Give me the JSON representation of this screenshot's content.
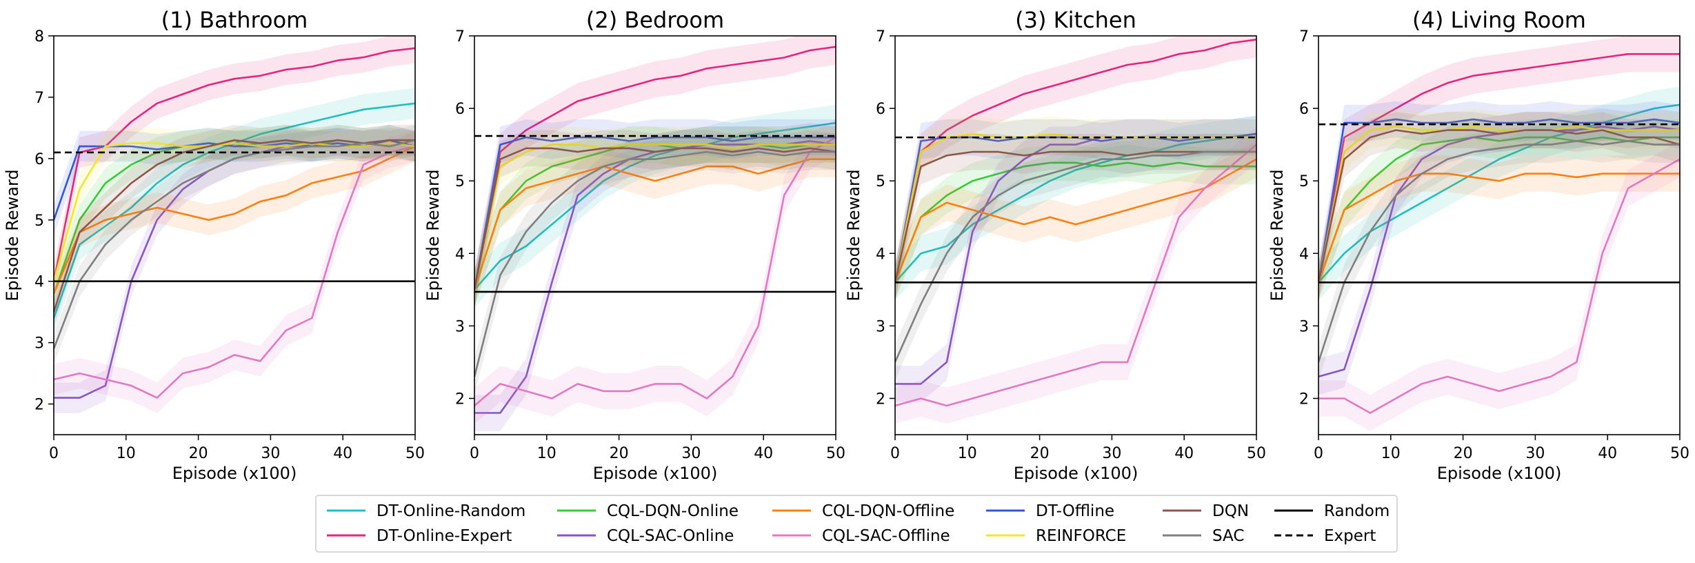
{
  "chart_data": {
    "type": "line",
    "xlabel": "Episode (x100)",
    "ylabel": "Episode Reward",
    "x_ticks": [
      0,
      10,
      20,
      30,
      40,
      50
    ],
    "legend": {
      "position": "bottom-center",
      "entries": [
        {
          "name": "DT-Online-Random",
          "color": "#1fbfbf",
          "style": "solid"
        },
        {
          "name": "DT-Online-Expert",
          "color": "#e6237e",
          "style": "solid"
        },
        {
          "name": "CQL-DQN-Online",
          "color": "#33cc33",
          "style": "solid"
        },
        {
          "name": "CQL-SAC-Online",
          "color": "#8855c8",
          "style": "solid"
        },
        {
          "name": "CQL-DQN-Offline",
          "color": "#ff7f0e",
          "style": "solid"
        },
        {
          "name": "CQL-SAC-Offline",
          "color": "#e377c2",
          "style": "solid"
        },
        {
          "name": "DT-Offline",
          "color": "#3355dd",
          "style": "solid"
        },
        {
          "name": "REINFORCE",
          "color": "#f2e52a",
          "style": "solid"
        },
        {
          "name": "DQN",
          "color": "#8c564b",
          "style": "solid"
        },
        {
          "name": "SAC",
          "color": "#7f7f7f",
          "style": "solid"
        },
        {
          "name": "Random",
          "color": "#000000",
          "style": "solid"
        },
        {
          "name": "Expert",
          "color": "#000000",
          "style": "dashed"
        }
      ]
    },
    "panels": [
      {
        "title": "(1) Bathroom",
        "xlim": [
          0,
          50
        ],
        "ylim": [
          1.5,
          8
        ],
        "y_ticks": [
          2,
          3,
          4,
          5,
          6,
          7,
          8
        ],
        "random": 4.0,
        "expert": 6.1,
        "series": [
          {
            "name": "DT-Online-Random",
            "values": [
              3.4,
              4.6,
              4.9,
              5.2,
              5.6,
              5.9,
              6.1,
              6.25,
              6.4,
              6.5,
              6.6,
              6.7,
              6.8,
              6.85,
              6.9
            ]
          },
          {
            "name": "DT-Online-Expert",
            "values": [
              4.0,
              6.1,
              6.2,
              6.6,
              6.9,
              7.05,
              7.2,
              7.3,
              7.35,
              7.45,
              7.5,
              7.6,
              7.65,
              7.75,
              7.8
            ]
          },
          {
            "name": "CQL-DQN-Online",
            "values": [
              3.8,
              5.0,
              5.6,
              5.9,
              6.1,
              6.2,
              6.25,
              6.2,
              6.25,
              6.3,
              6.2,
              6.3,
              6.25,
              6.3,
              6.2
            ]
          },
          {
            "name": "CQL-SAC-Online",
            "values": [
              2.1,
              2.1,
              2.3,
              4.0,
              5.0,
              5.5,
              5.8,
              6.0,
              6.1,
              6.2,
              6.2,
              6.25,
              6.2,
              6.25,
              6.2
            ]
          },
          {
            "name": "CQL-DQN-Offline",
            "values": [
              3.8,
              4.8,
              5.0,
              5.1,
              5.2,
              5.1,
              5.0,
              5.1,
              5.3,
              5.4,
              5.6,
              5.7,
              5.8,
              6.0,
              6.2
            ]
          },
          {
            "name": "CQL-SAC-Offline",
            "values": [
              2.4,
              2.5,
              2.4,
              2.3,
              2.1,
              2.5,
              2.6,
              2.8,
              2.7,
              3.2,
              3.4,
              4.8,
              5.9,
              6.1,
              6.2
            ]
          },
          {
            "name": "DT-Offline",
            "values": [
              5.0,
              6.2,
              6.2,
              6.2,
              6.15,
              6.2,
              6.25,
              6.2,
              6.2,
              6.25,
              6.2,
              6.25,
              6.2,
              6.3,
              6.2
            ]
          },
          {
            "name": "REINFORCE",
            "values": [
              4.0,
              5.5,
              6.2,
              6.25,
              6.25,
              6.2,
              6.2,
              6.25,
              6.2,
              6.2,
              6.25,
              6.2,
              6.2,
              6.25,
              6.2
            ]
          },
          {
            "name": "DQN",
            "values": [
              3.5,
              4.8,
              5.2,
              5.6,
              5.9,
              6.1,
              6.2,
              6.3,
              6.25,
              6.3,
              6.25,
              6.3,
              6.25,
              6.3,
              6.3
            ]
          },
          {
            "name": "SAC",
            "values": [
              2.9,
              4.0,
              4.6,
              5.0,
              5.3,
              5.6,
              5.8,
              6.0,
              6.1,
              6.15,
              6.2,
              6.2,
              6.25,
              6.2,
              6.3
            ]
          }
        ]
      },
      {
        "title": "(2) Bedroom",
        "xlim": [
          0,
          50
        ],
        "ylim": [
          1.5,
          7
        ],
        "y_ticks": [
          2,
          3,
          4,
          5,
          6,
          7
        ],
        "random": 3.47,
        "expert": 5.62,
        "series": [
          {
            "name": "DT-Online-Random",
            "values": [
              3.5,
              3.9,
              4.1,
              4.4,
              4.7,
              5.0,
              5.2,
              5.35,
              5.45,
              5.5,
              5.6,
              5.65,
              5.7,
              5.75,
              5.8
            ]
          },
          {
            "name": "DT-Online-Expert",
            "values": [
              3.5,
              5.4,
              5.7,
              5.9,
              6.1,
              6.2,
              6.3,
              6.4,
              6.45,
              6.55,
              6.6,
              6.65,
              6.7,
              6.8,
              6.85
            ]
          },
          {
            "name": "CQL-DQN-Online",
            "values": [
              3.5,
              4.6,
              5.0,
              5.2,
              5.3,
              5.4,
              5.5,
              5.5,
              5.45,
              5.5,
              5.5,
              5.5,
              5.45,
              5.5,
              5.5
            ]
          },
          {
            "name": "CQL-SAC-Online",
            "values": [
              1.8,
              1.8,
              2.3,
              3.6,
              4.8,
              5.1,
              5.3,
              5.4,
              5.45,
              5.5,
              5.5,
              5.5,
              5.5,
              5.55,
              5.5
            ]
          },
          {
            "name": "CQL-DQN-Offline",
            "values": [
              3.5,
              4.6,
              4.9,
              5.0,
              5.1,
              5.2,
              5.1,
              5.0,
              5.1,
              5.2,
              5.2,
              5.1,
              5.2,
              5.3,
              5.3
            ]
          },
          {
            "name": "CQL-SAC-Offline",
            "values": [
              1.9,
              2.2,
              2.1,
              2.0,
              2.2,
              2.1,
              2.1,
              2.2,
              2.2,
              2.0,
              2.3,
              3.0,
              4.8,
              5.4,
              5.6
            ]
          },
          {
            "name": "DT-Offline",
            "values": [
              3.5,
              5.5,
              5.6,
              5.55,
              5.6,
              5.6,
              5.55,
              5.6,
              5.6,
              5.6,
              5.55,
              5.6,
              5.6,
              5.6,
              5.6
            ]
          },
          {
            "name": "REINFORCE",
            "values": [
              3.5,
              5.2,
              5.4,
              5.5,
              5.5,
              5.45,
              5.5,
              5.5,
              5.5,
              5.5,
              5.45,
              5.5,
              5.5,
              5.5,
              5.5
            ]
          },
          {
            "name": "DQN",
            "values": [
              3.5,
              5.3,
              5.45,
              5.45,
              5.4,
              5.45,
              5.45,
              5.4,
              5.45,
              5.45,
              5.4,
              5.45,
              5.4,
              5.45,
              5.4
            ]
          },
          {
            "name": "SAC",
            "values": [
              2.3,
              3.7,
              4.3,
              4.7,
              5.0,
              5.2,
              5.3,
              5.3,
              5.35,
              5.4,
              5.35,
              5.4,
              5.35,
              5.4,
              5.4
            ]
          }
        ]
      },
      {
        "title": "(3) Kitchen",
        "xlim": [
          0,
          50
        ],
        "ylim": [
          1.5,
          7
        ],
        "y_ticks": [
          2,
          3,
          4,
          5,
          6,
          7
        ],
        "random": 3.6,
        "expert": 5.6,
        "series": [
          {
            "name": "DT-Online-Random",
            "values": [
              3.6,
              4.0,
              4.1,
              4.4,
              4.6,
              4.8,
              5.0,
              5.15,
              5.25,
              5.35,
              5.4,
              5.5,
              5.55,
              5.6,
              5.65
            ]
          },
          {
            "name": "DT-Online-Expert",
            "values": [
              3.6,
              5.4,
              5.7,
              5.9,
              6.05,
              6.2,
              6.3,
              6.4,
              6.5,
              6.6,
              6.65,
              6.75,
              6.8,
              6.9,
              6.95
            ]
          },
          {
            "name": "CQL-DQN-Online",
            "values": [
              3.6,
              4.5,
              4.8,
              5.0,
              5.1,
              5.2,
              5.25,
              5.25,
              5.2,
              5.25,
              5.2,
              5.25,
              5.2,
              5.2,
              5.2
            ]
          },
          {
            "name": "CQL-SAC-Online",
            "values": [
              2.2,
              2.2,
              2.5,
              4.3,
              5.0,
              5.3,
              5.5,
              5.5,
              5.6,
              5.6,
              5.6,
              5.6,
              5.6,
              5.6,
              5.6
            ]
          },
          {
            "name": "CQL-DQN-Offline",
            "values": [
              3.6,
              4.5,
              4.7,
              4.6,
              4.5,
              4.4,
              4.5,
              4.4,
              4.5,
              4.6,
              4.7,
              4.8,
              4.9,
              5.1,
              5.3
            ]
          },
          {
            "name": "CQL-SAC-Offline",
            "values": [
              1.9,
              2.0,
              1.9,
              2.0,
              2.1,
              2.2,
              2.3,
              2.4,
              2.5,
              2.5,
              3.5,
              4.5,
              4.9,
              5.2,
              5.5
            ]
          },
          {
            "name": "DT-Offline",
            "values": [
              3.6,
              5.55,
              5.6,
              5.6,
              5.55,
              5.6,
              5.6,
              5.6,
              5.55,
              5.6,
              5.6,
              5.55,
              5.6,
              5.6,
              5.65
            ]
          },
          {
            "name": "REINFORCE",
            "values": [
              3.6,
              5.4,
              5.6,
              5.65,
              5.6,
              5.6,
              5.65,
              5.6,
              5.6,
              5.6,
              5.6,
              5.6,
              5.6,
              5.6,
              5.6
            ]
          },
          {
            "name": "DQN",
            "values": [
              3.6,
              5.2,
              5.35,
              5.4,
              5.4,
              5.35,
              5.4,
              5.4,
              5.4,
              5.35,
              5.4,
              5.4,
              5.4,
              5.4,
              5.4
            ]
          },
          {
            "name": "SAC",
            "values": [
              2.5,
              3.3,
              4.0,
              4.5,
              4.8,
              5.0,
              5.1,
              5.2,
              5.3,
              5.3,
              5.35,
              5.35,
              5.4,
              5.4,
              5.4
            ]
          }
        ]
      },
      {
        "title": "(4) Living Room",
        "xlim": [
          0,
          50
        ],
        "ylim": [
          1.5,
          7
        ],
        "y_ticks": [
          2,
          3,
          4,
          5,
          6,
          7
        ],
        "random": 3.6,
        "expert": 5.78,
        "series": [
          {
            "name": "DT-Online-Random",
            "values": [
              3.6,
              4.0,
              4.3,
              4.5,
              4.7,
              4.9,
              5.1,
              5.3,
              5.45,
              5.6,
              5.7,
              5.8,
              5.9,
              6.0,
              6.05
            ]
          },
          {
            "name": "DT-Online-Expert",
            "values": [
              3.6,
              5.6,
              5.8,
              6.0,
              6.2,
              6.35,
              6.45,
              6.5,
              6.55,
              6.6,
              6.65,
              6.7,
              6.75,
              6.75,
              6.75
            ]
          },
          {
            "name": "CQL-DQN-Online",
            "values": [
              3.6,
              4.6,
              5.0,
              5.3,
              5.5,
              5.55,
              5.6,
              5.55,
              5.6,
              5.6,
              5.55,
              5.6,
              5.55,
              5.6,
              5.6
            ]
          },
          {
            "name": "CQL-SAC-Online",
            "values": [
              2.3,
              2.4,
              3.5,
              4.8,
              5.3,
              5.5,
              5.6,
              5.65,
              5.7,
              5.7,
              5.7,
              5.75,
              5.7,
              5.75,
              5.7
            ]
          },
          {
            "name": "CQL-DQN-Offline",
            "values": [
              3.6,
              4.6,
              4.8,
              5.0,
              5.1,
              5.1,
              5.05,
              5.0,
              5.1,
              5.1,
              5.05,
              5.1,
              5.1,
              5.1,
              5.1
            ]
          },
          {
            "name": "CQL-SAC-Offline",
            "values": [
              2.0,
              2.0,
              1.8,
              2.0,
              2.2,
              2.3,
              2.2,
              2.1,
              2.2,
              2.3,
              2.5,
              4.0,
              4.9,
              5.1,
              5.3
            ]
          },
          {
            "name": "DT-Offline",
            "values": [
              3.6,
              5.8,
              5.8,
              5.85,
              5.8,
              5.8,
              5.85,
              5.8,
              5.8,
              5.85,
              5.8,
              5.8,
              5.8,
              5.85,
              5.8
            ]
          },
          {
            "name": "REINFORCE",
            "values": [
              3.6,
              5.4,
              5.7,
              5.75,
              5.7,
              5.7,
              5.75,
              5.7,
              5.7,
              5.7,
              5.75,
              5.7,
              5.7,
              5.7,
              5.7
            ]
          },
          {
            "name": "DQN",
            "values": [
              3.6,
              5.3,
              5.6,
              5.7,
              5.65,
              5.7,
              5.7,
              5.65,
              5.7,
              5.7,
              5.65,
              5.7,
              5.6,
              5.6,
              5.5
            ]
          },
          {
            "name": "SAC",
            "values": [
              2.5,
              3.6,
              4.3,
              4.8,
              5.1,
              5.3,
              5.4,
              5.45,
              5.5,
              5.5,
              5.55,
              5.5,
              5.55,
              5.5,
              5.5
            ]
          }
        ]
      }
    ]
  }
}
